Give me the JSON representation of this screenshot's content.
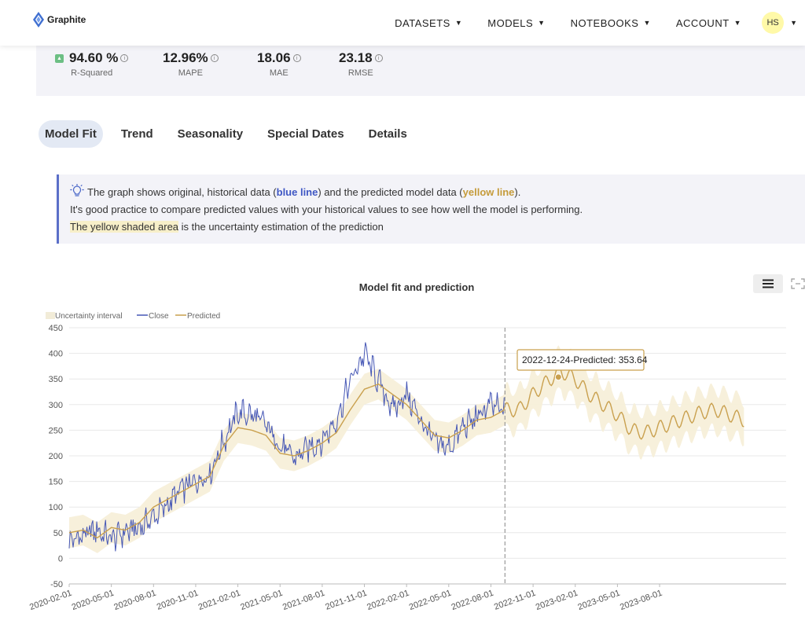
{
  "brand": {
    "name": "Graphite"
  },
  "nav": {
    "items": [
      {
        "label": "DATASETS"
      },
      {
        "label": "MODELS"
      },
      {
        "label": "NOTEBOOKS"
      },
      {
        "label": "ACCOUNT"
      }
    ],
    "avatar_initials": "HS"
  },
  "metrics": [
    {
      "value": "94.60 %",
      "label": "R-Squared"
    },
    {
      "value": "12.96%",
      "label": "MAPE"
    },
    {
      "value": "18.06",
      "label": "MAE"
    },
    {
      "value": "23.18",
      "label": "RMSE"
    }
  ],
  "tabs": [
    {
      "label": "Model Fit"
    },
    {
      "label": "Trend"
    },
    {
      "label": "Seasonality"
    },
    {
      "label": "Special Dates"
    },
    {
      "label": "Details"
    }
  ],
  "callout": {
    "line1_pre": "The graph shows original, historical data (",
    "line1_blue": "blue line",
    "line1_mid": ") and the predicted model data (",
    "line1_gold": "yellow line",
    "line1_end": ").",
    "line2": "It's good practice to compare predicted values with your historical values to see how well the model is performing.",
    "line3_shaded": "The yellow shaded area",
    "line3_rest": " is the uncertainty estimation of the prediction"
  },
  "colors": {
    "close": "#4657b5",
    "predicted": "#c9a04e",
    "band": "#f7efd9",
    "accent": "#5b6fc8"
  },
  "chart_data": {
    "type": "line",
    "title": "Model fit and prediction",
    "legend": [
      "Uncertainty interval",
      "Close",
      "Predicted"
    ],
    "ylim": [
      -50,
      450
    ],
    "yticks": [
      -50,
      0,
      50,
      100,
      150,
      200,
      250,
      300,
      350,
      400,
      450
    ],
    "xtick_labels": [
      "2020-02-01",
      "2020-05-01",
      "2020-08-01",
      "2020-11-01",
      "2021-02-01",
      "2021-05-01",
      "2021-08-01",
      "2021-11-01",
      "2022-02-01",
      "2022-05-01",
      "2022-08-01",
      "2022-11-01",
      "2023-02-01",
      "2023-05-01",
      "2023-08-01"
    ],
    "forecast_start_month": 31,
    "tooltip": "2022-12-24-Predicted: 353.64",
    "tooltip_point": {
      "month": 34.8,
      "value": 353.64
    },
    "series": [
      {
        "name": "Close",
        "months": [
          0,
          1,
          2,
          3,
          4,
          5,
          6,
          7,
          8,
          9,
          10,
          11,
          12,
          13,
          14,
          15,
          16,
          17,
          18,
          19,
          20,
          21,
          22,
          23,
          24,
          25,
          26,
          27,
          28,
          29,
          30,
          31
        ],
        "values": [
          32,
          45,
          55,
          38,
          52,
          60,
          80,
          105,
          135,
          150,
          165,
          230,
          285,
          280,
          260,
          220,
          195,
          215,
          230,
          270,
          345,
          400,
          345,
          290,
          320,
          270,
          225,
          215,
          255,
          275,
          300,
          285
        ]
      },
      {
        "name": "Predicted",
        "months": [
          0,
          1,
          2,
          3,
          4,
          5,
          6,
          7,
          8,
          9,
          10,
          11,
          12,
          13,
          14,
          15,
          16,
          17,
          18,
          19,
          20,
          21,
          22,
          23,
          24,
          25,
          26,
          27,
          28,
          29,
          30,
          31,
          32,
          33,
          34,
          35,
          36,
          37,
          38,
          39,
          40,
          41,
          42,
          43,
          44,
          45,
          46,
          47,
          48
        ],
        "values": [
          50,
          55,
          40,
          60,
          55,
          70,
          100,
          115,
          130,
          145,
          160,
          220,
          255,
          250,
          240,
          205,
          200,
          210,
          225,
          245,
          290,
          330,
          340,
          320,
          300,
          270,
          240,
          235,
          250,
          270,
          275,
          290,
          290,
          320,
          345,
          365,
          350,
          320,
          300,
          280,
          250,
          245,
          255,
          265,
          275,
          285,
          290,
          280,
          270
        ]
      }
    ],
    "band_halfwidth": 30
  }
}
